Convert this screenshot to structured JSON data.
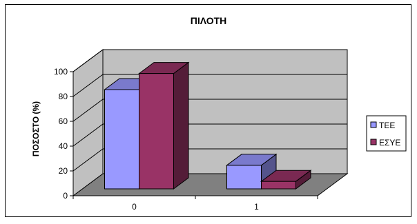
{
  "chart_data": {
    "type": "bar",
    "title": "ΠΙΛΟΤΗ",
    "xlabel": "",
    "ylabel": "ΠΟΣΟΣΤΟ (%)",
    "ylim": [
      0,
      100
    ],
    "yticks": [
      0,
      20,
      40,
      60,
      80,
      100
    ],
    "categories": [
      "0",
      "1"
    ],
    "series": [
      {
        "name": "ΤΕΕ",
        "values": [
          80,
          19
        ],
        "color": "#9999ff"
      },
      {
        "name": "ΕΣΥΕ",
        "values": [
          93,
          6
        ],
        "color": "#993366"
      }
    ],
    "grid": true,
    "legend": "right",
    "three_d": true
  }
}
